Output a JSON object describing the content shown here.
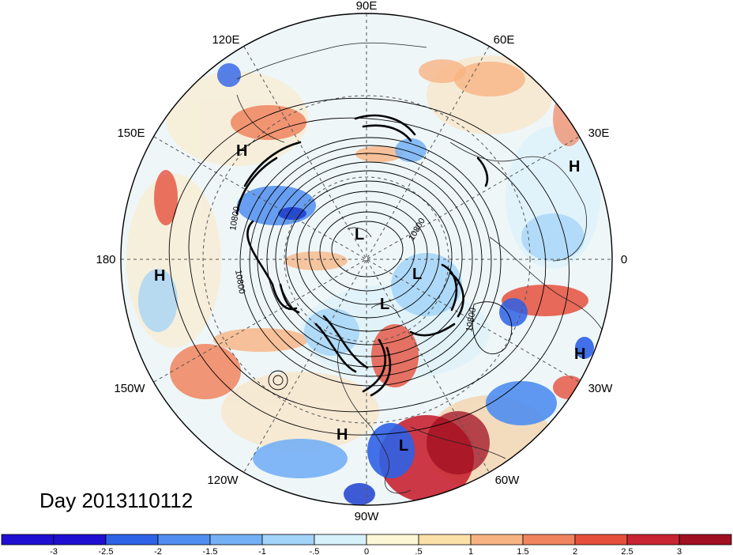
{
  "day_label": "Day 2013110112",
  "longitude_labels": [
    "90E",
    "60E",
    "30E",
    "0",
    "30W",
    "60W",
    "90W",
    "120W",
    "150W",
    "180",
    "150E",
    "120E"
  ],
  "pressure_systems": [
    "H",
    "H",
    "H",
    "H",
    "H",
    "L",
    "L",
    "L",
    "L"
  ],
  "contour_labels": [
    "10800",
    "10800",
    "10800",
    "10800"
  ],
  "colorbar": {
    "ticks": [
      "-3",
      "-2.5",
      "-2",
      "-1.5",
      "-1",
      "-.5",
      "0",
      ".5",
      "1",
      "1.5",
      "2",
      "2.5",
      "3"
    ],
    "colors": [
      "#1f0fd0",
      "#2e62e6",
      "#4f8ef0",
      "#74b0f5",
      "#a2d3f8",
      "#d7f1fb",
      "#fdf7d6",
      "#fbe0a8",
      "#f7b482",
      "#f0845e",
      "#e5503d",
      "#c82431",
      "#a00f22"
    ]
  },
  "map_colors": {
    "ocean_background": "#e9f3f7",
    "warm_anomaly": "#e5503d",
    "strong_warm_anomaly": "#b81c2c",
    "cold_anomaly": "#4f8ef0",
    "strong_cold_anomaly": "#1f3fd0",
    "contour": "#000000"
  }
}
